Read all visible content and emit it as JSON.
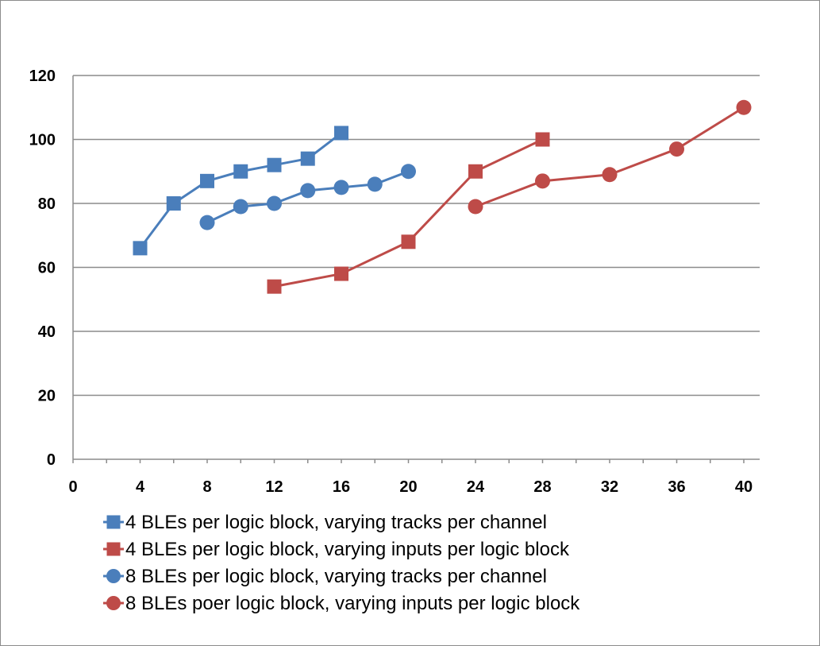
{
  "chart_data": {
    "type": "line",
    "xlim": [
      0,
      40
    ],
    "ylim": [
      0,
      120
    ],
    "x_ticks": [
      0,
      4,
      8,
      12,
      16,
      20,
      24,
      28,
      32,
      36,
      40
    ],
    "y_ticks": [
      0,
      20,
      40,
      60,
      80,
      100,
      120
    ],
    "grid": "horizontal",
    "legend_position": "bottom",
    "series": [
      {
        "name": "4 BLEs per logic block, varying tracks per channel",
        "color": "#4a7ebb",
        "marker": "square",
        "x": [
          4,
          6,
          8,
          10,
          12,
          14,
          16
        ],
        "y": [
          66,
          80,
          87,
          90,
          92,
          94,
          102
        ]
      },
      {
        "name": "4 BLEs per logic block, varying inputs per logic block",
        "color": "#be4b48",
        "marker": "square",
        "x": [
          12,
          16,
          20,
          24,
          28
        ],
        "y": [
          54,
          58,
          68,
          90,
          100
        ]
      },
      {
        "name": "8 BLEs per logic block, varying tracks per channel",
        "color": "#4a7ebb",
        "marker": "circle",
        "x": [
          8,
          10,
          12,
          14,
          16,
          18,
          20
        ],
        "y": [
          74,
          79,
          80,
          84,
          85,
          86,
          90
        ]
      },
      {
        "name": "8 BLEs poer logic block, varying inputs per logic block",
        "color": "#be4b48",
        "marker": "circle",
        "x": [
          24,
          28,
          32,
          36,
          40
        ],
        "y": [
          79,
          87,
          89,
          97,
          110
        ]
      }
    ]
  }
}
